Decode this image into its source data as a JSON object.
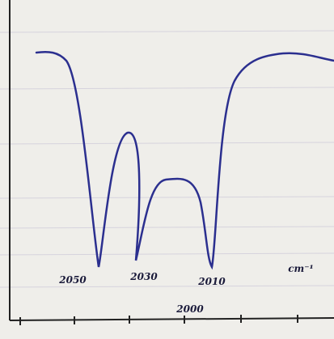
{
  "peak_labels": [
    "2050",
    "2030",
    "2010"
  ],
  "unit_label": "cm⁻¹",
  "axis_label": "2000"
}
